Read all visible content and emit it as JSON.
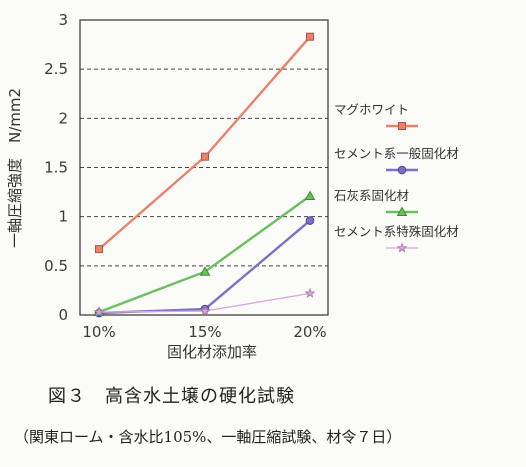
{
  "chart_data": {
    "type": "line",
    "categories": [
      "10%",
      "15%",
      "20%"
    ],
    "series": [
      {
        "name": "マグホワイト",
        "values": [
          0.67,
          1.61,
          2.83
        ],
        "color": "#e8826a",
        "marker": "square"
      },
      {
        "name": "セメント系一般固化材",
        "values": [
          0.02,
          0.06,
          0.96
        ],
        "color": "#7a72c2",
        "marker": "circle"
      },
      {
        "name": "石灰系固化材",
        "values": [
          0.03,
          0.44,
          1.21
        ],
        "color": "#6cbf5f",
        "marker": "triangle"
      },
      {
        "name": "セメント系特殊固化材",
        "values": [
          0.03,
          0.04,
          0.22
        ],
        "color": "#d8a8d8",
        "marker": "star"
      }
    ],
    "ylim": [
      0,
      3
    ],
    "yticks": [
      "0",
      "0.5",
      "1",
      "1.5",
      "2",
      "2.5",
      "3"
    ],
    "ylabel": "一軸圧縮強度　N/mm2",
    "xlabel": "固化材添加率",
    "grid": "horizontal dashed",
    "legend_position": "right"
  },
  "caption": {
    "title": "図３　高含水土壌の硬化試験",
    "subtitle": "（関東ローム・含水比105%、一軸圧縮試験、材令７日）"
  }
}
